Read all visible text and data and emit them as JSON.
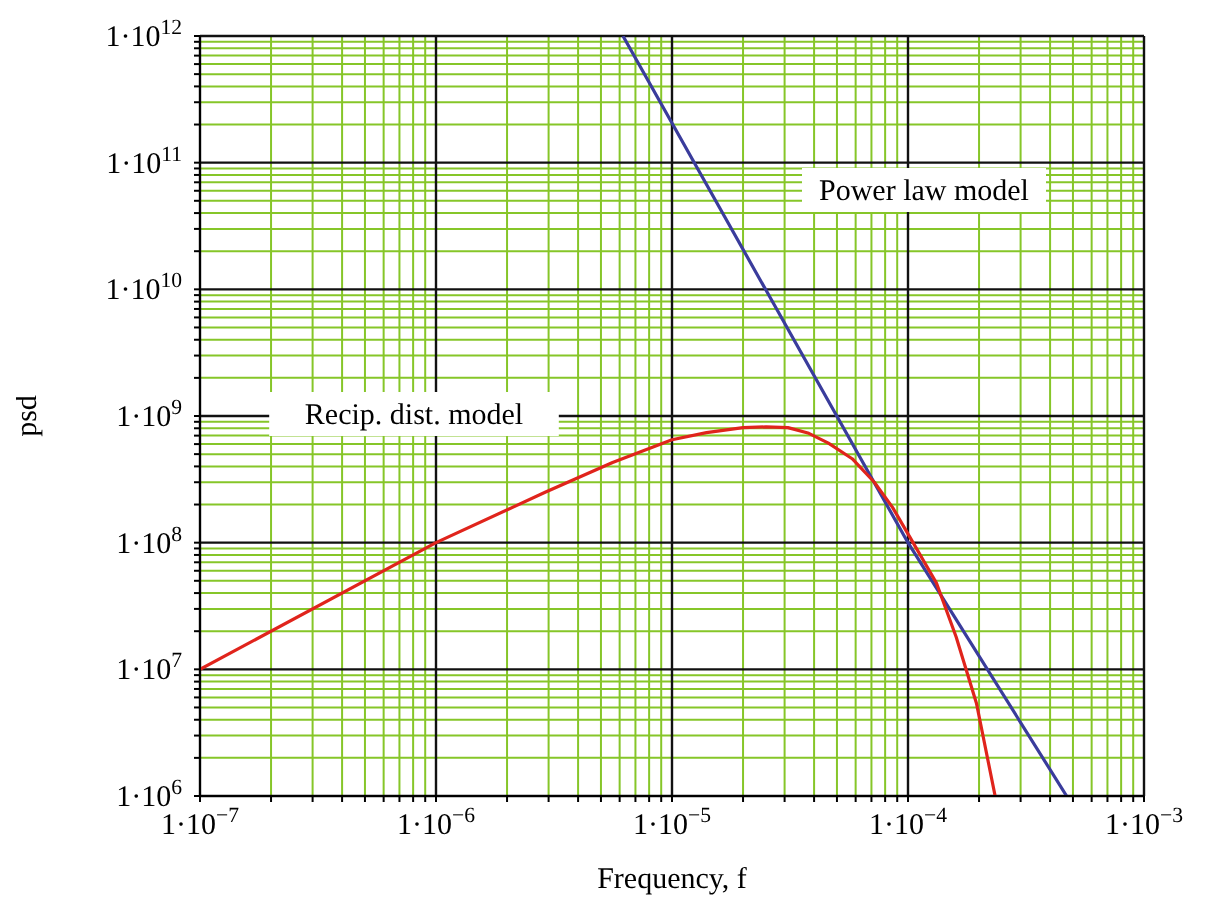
{
  "chart_data": {
    "type": "line",
    "xlabel": "Frequency, f",
    "ylabel": "psd",
    "log": "xy",
    "grid": true,
    "line_style": "solid",
    "marker": "none",
    "xlim": [
      1e-07,
      0.001
    ],
    "xticks": [
      {
        "value": 1e-07,
        "label": "1·10$^{−7}$"
      },
      {
        "value": 2e-07,
        "label": null
      },
      {
        "value": 3e-07,
        "label": null
      },
      {
        "value": 4e-07,
        "label": null
      },
      {
        "value": 5e-07,
        "label": null
      },
      {
        "value": 6e-07,
        "label": null
      },
      {
        "value": 7e-07,
        "label": null
      },
      {
        "value": 8e-07,
        "label": null
      },
      {
        "value": 9e-07,
        "label": null
      },
      {
        "value": 1e-06,
        "label": "1·10$^{−6}$"
      },
      {
        "value": 2e-06,
        "label": null
      },
      {
        "value": 3e-06,
        "label": null
      },
      {
        "value": 4e-06,
        "label": null
      },
      {
        "value": 5e-06,
        "label": null
      },
      {
        "value": 6e-06,
        "label": null
      },
      {
        "value": 7e-06,
        "label": null
      },
      {
        "value": 8e-06,
        "label": null
      },
      {
        "value": 9e-06,
        "label": null
      },
      {
        "value": 1e-05,
        "label": "1·10$^{−5}$"
      },
      {
        "value": 2e-05,
        "label": null
      },
      {
        "value": 3e-05,
        "label": null
      },
      {
        "value": 4e-05,
        "label": null
      },
      {
        "value": 5e-05,
        "label": null
      },
      {
        "value": 6e-05,
        "label": null
      },
      {
        "value": 7e-05,
        "label": null
      },
      {
        "value": 8e-05,
        "label": null
      },
      {
        "value": 9e-05,
        "label": null
      },
      {
        "value": 0.0001,
        "label": "1·10$^{−4}$"
      },
      {
        "value": 0.0002,
        "label": null
      },
      {
        "value": 0.0003,
        "label": null
      },
      {
        "value": 0.0004,
        "label": null
      },
      {
        "value": 0.0005,
        "label": null
      },
      {
        "value": 0.0006,
        "label": null
      },
      {
        "value": 0.0007,
        "label": null
      },
      {
        "value": 0.0008,
        "label": null
      },
      {
        "value": 0.0009,
        "label": null
      },
      {
        "value": 0.001,
        "label": "1·10$^{−3}$"
      }
    ],
    "ylim": [
      1000000,
      1000000000000
    ],
    "yticks": [
      {
        "value": 1000000,
        "label": "1·10$^{6}$"
      },
      {
        "value": 2000000,
        "label": null
      },
      {
        "value": 3000000,
        "label": null
      },
      {
        "value": 4000000,
        "label": null
      },
      {
        "value": 5000000,
        "label": null
      },
      {
        "value": 6000000,
        "label": null
      },
      {
        "value": 7000000,
        "label": null
      },
      {
        "value": 8000000,
        "label": null
      },
      {
        "value": 9000000,
        "label": null
      },
      {
        "value": 10000000,
        "label": "1·10$^{7}$"
      },
      {
        "value": 20000000,
        "label": null
      },
      {
        "value": 30000000,
        "label": null
      },
      {
        "value": 40000000,
        "label": null
      },
      {
        "value": 50000000,
        "label": null
      },
      {
        "value": 60000000,
        "label": null
      },
      {
        "value": 70000000,
        "label": null
      },
      {
        "value": 80000000,
        "label": null
      },
      {
        "value": 90000000,
        "label": null
      },
      {
        "value": 100000000,
        "label": "1·10$^{8}$"
      },
      {
        "value": 200000000,
        "label": null
      },
      {
        "value": 300000000,
        "label": null
      },
      {
        "value": 400000000,
        "label": null
      },
      {
        "value": 500000000,
        "label": null
      },
      {
        "value": 600000000,
        "label": null
      },
      {
        "value": 700000000,
        "label": null
      },
      {
        "value": 800000000,
        "label": null
      },
      {
        "value": 900000000,
        "label": null
      },
      {
        "value": 1000000000,
        "label": "1·10$^{9}$"
      },
      {
        "value": 2000000000,
        "label": null
      },
      {
        "value": 3000000000,
        "label": null
      },
      {
        "value": 4000000000,
        "label": null
      },
      {
        "value": 5000000000,
        "label": null
      },
      {
        "value": 6000000000,
        "label": null
      },
      {
        "value": 7000000000,
        "label": null
      },
      {
        "value": 8000000000,
        "label": null
      },
      {
        "value": 9000000000,
        "label": null
      },
      {
        "value": 10000000000,
        "label": "1·10$^{10}$"
      },
      {
        "value": 20000000000,
        "label": null
      },
      {
        "value": 30000000000,
        "label": null
      },
      {
        "value": 40000000000,
        "label": null
      },
      {
        "value": 50000000000,
        "label": null
      },
      {
        "value": 60000000000,
        "label": null
      },
      {
        "value": 70000000000,
        "label": null
      },
      {
        "value": 80000000000,
        "label": null
      },
      {
        "value": 90000000000,
        "label": null
      },
      {
        "value": 100000000000,
        "label": "1·10$^{11}$"
      },
      {
        "value": 200000000000,
        "label": null
      },
      {
        "value": 300000000000,
        "label": null
      },
      {
        "value": 400000000000,
        "label": null
      },
      {
        "value": 500000000000,
        "label": null
      },
      {
        "value": 600000000000,
        "label": null
      },
      {
        "value": 700000000000,
        "label": null
      },
      {
        "value": 800000000000,
        "label": null
      },
      {
        "value": 900000000000,
        "label": null
      },
      {
        "value": 1000000000000,
        "label": "1·10$^{12}$"
      }
    ],
    "series": [
      {
        "color": "#3a3c9c",
        "x": [
          6.2e-06,
          0.0001,
          0.00047
        ],
        "values": [
          1000000000000,
          100000000,
          1000000
        ]
      },
      {
        "color": "#e0241c",
        "x": [
          1e-07,
          1e-06,
          2.9e-06,
          5.6e-06,
          1e-05,
          1.4e-05,
          2e-05,
          2.5e-05,
          3.1e-05,
          3.8e-05,
          4.6e-05,
          5.8e-05,
          7.2e-05,
          8.6e-05,
          0.000102,
          0.000132,
          0.00016,
          0.000195,
          0.000234
        ],
        "values": [
          10000000,
          100000000,
          250000000,
          430000000,
          650000000,
          740000000,
          810000000,
          820000000,
          810000000,
          730000000,
          610000000,
          460000000,
          300000000,
          190000000,
          110000000,
          48000000,
          18000000,
          5400000,
          1000000
        ]
      }
    ],
    "annotations": [
      "Power law model",
      "Recip. dist. model"
    ]
  }
}
